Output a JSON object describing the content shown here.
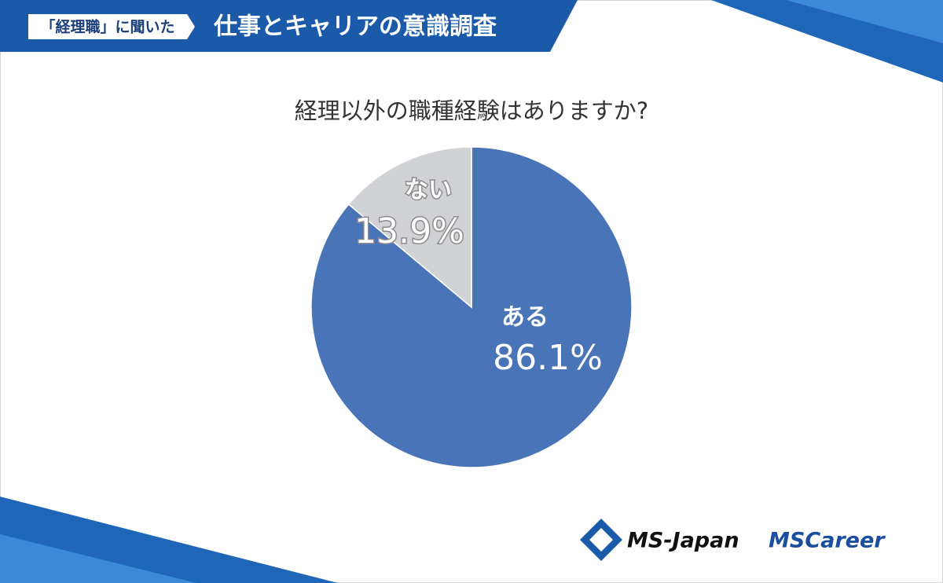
{
  "header": {
    "tag": "「経理職」に聞いた",
    "title": "仕事とキャリアの意識調査"
  },
  "chart_data": {
    "type": "pie",
    "title": "経理以外の職種経験はありますか?",
    "categories": [
      "ある",
      "ない"
    ],
    "values": [
      86.1,
      13.9
    ],
    "value_labels": [
      "86.1%",
      "13.9%"
    ],
    "colors": [
      "#4a74b8",
      "#d1d2d6"
    ]
  },
  "footer": {
    "logos": [
      "MS-Japan",
      "MSCareer"
    ]
  }
}
